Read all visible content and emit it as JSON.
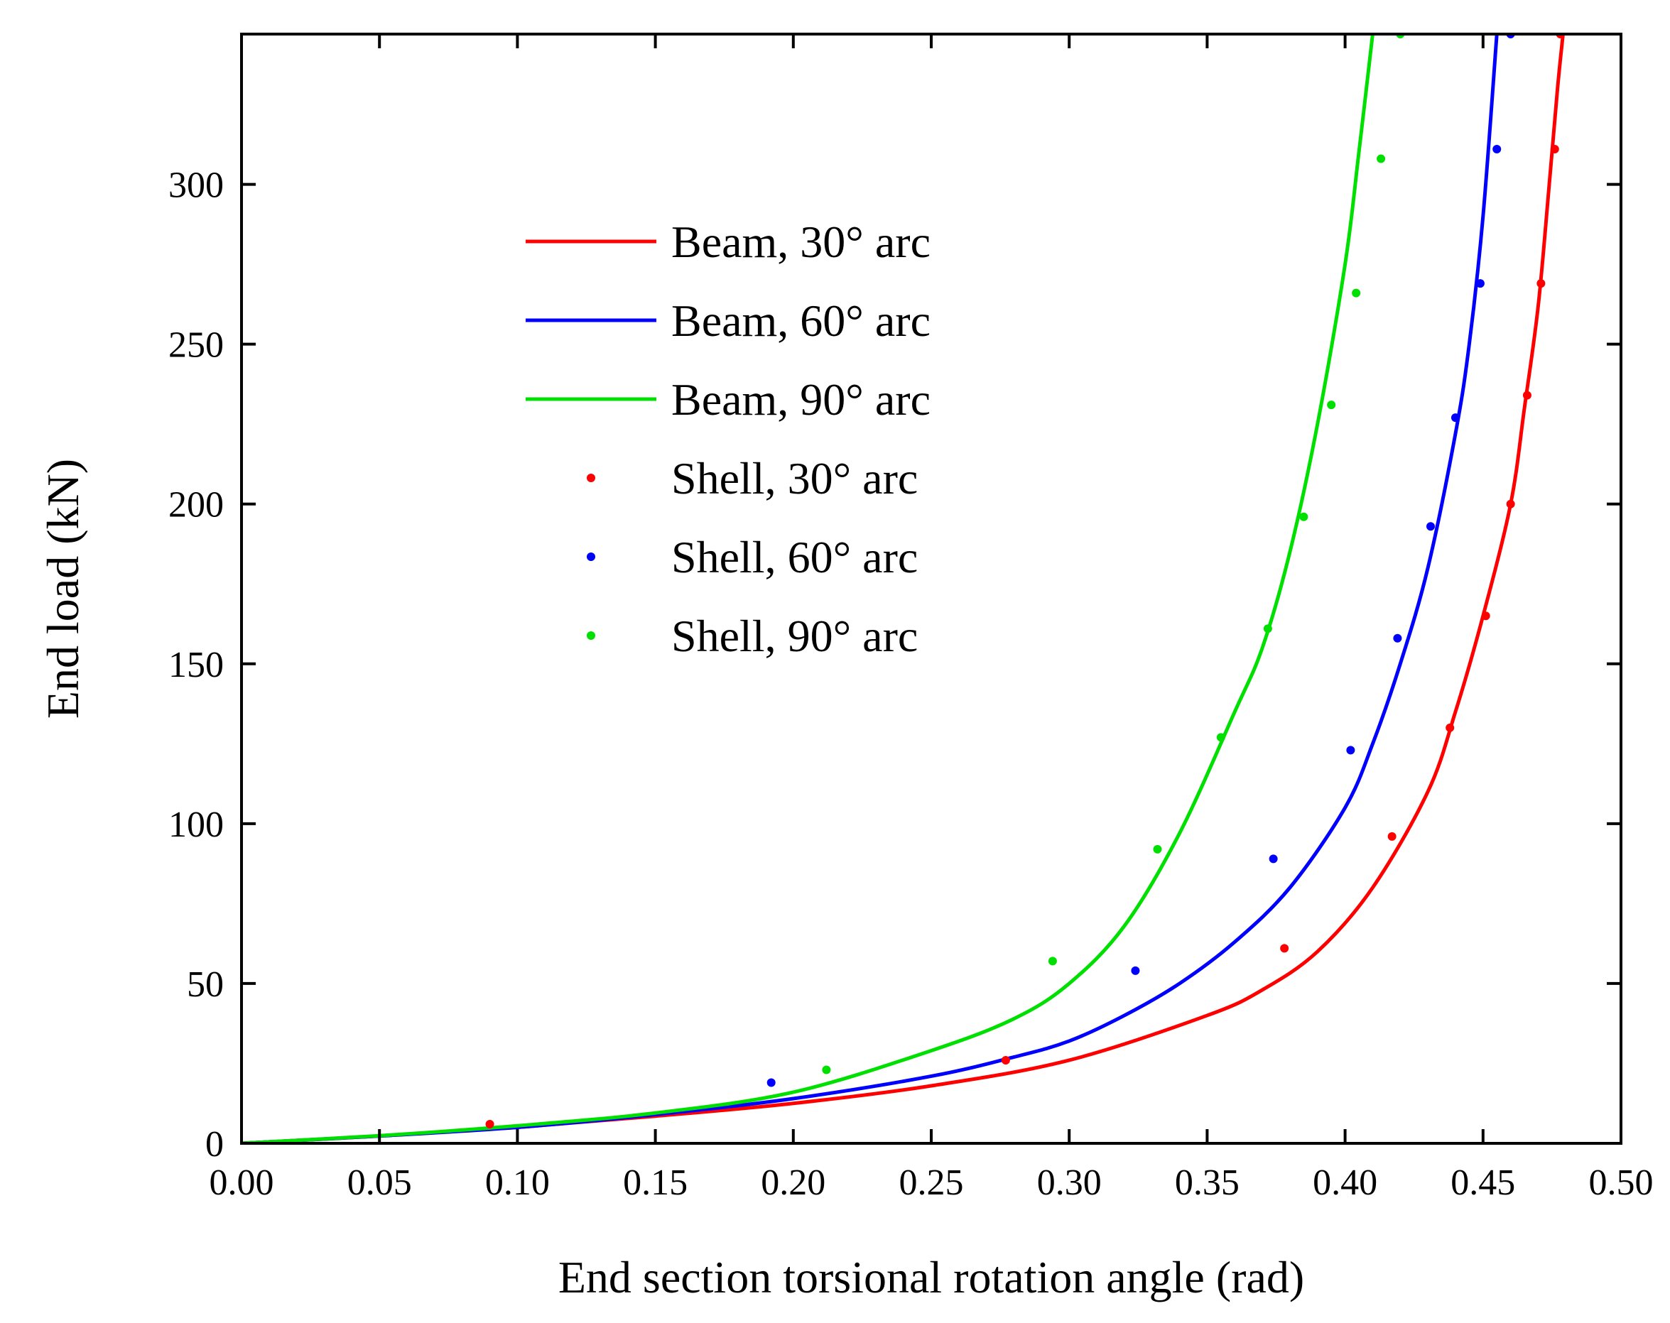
{
  "chart_data": {
    "type": "line",
    "title": "",
    "xlabel": "End section torsional rotation angle (rad)",
    "ylabel": "End load (kN)",
    "xlim": [
      0,
      0.5
    ],
    "ylim": [
      0,
      347
    ],
    "x_ticks": [
      0.0,
      0.05,
      0.1,
      0.15,
      0.2,
      0.25,
      0.3,
      0.35,
      0.4,
      0.45,
      0.5
    ],
    "x_tick_labels": [
      "0.00",
      "0.05",
      "0.10",
      "0.15",
      "0.20",
      "0.25",
      "0.30",
      "0.35",
      "0.40",
      "0.45",
      "0.50"
    ],
    "y_ticks": [
      0,
      50,
      100,
      150,
      200,
      250,
      300
    ],
    "y_tick_labels": [
      "0",
      "50",
      "100",
      "150",
      "200",
      "250",
      "300"
    ],
    "grid": false,
    "legend_position": "upper-left",
    "series": [
      {
        "name": "Beam, 30° arc",
        "kind": "line",
        "color": "#ff0000",
        "x": [
          0.0,
          0.05,
          0.1,
          0.15,
          0.2,
          0.25,
          0.3,
          0.35,
          0.37,
          0.39,
          0.41,
          0.43,
          0.44,
          0.45,
          0.46,
          0.465,
          0.47,
          0.474,
          0.477,
          0.479
        ],
        "y": [
          0,
          2.3,
          5,
          8.5,
          12.5,
          18,
          26,
          40,
          48,
          60,
          80,
          110,
          135,
          165,
          200,
          230,
          262,
          300,
          330,
          347
        ]
      },
      {
        "name": "Beam, 60° arc",
        "kind": "line",
        "color": "#0000ff",
        "x": [
          0.0,
          0.05,
          0.1,
          0.15,
          0.2,
          0.25,
          0.28,
          0.3,
          0.32,
          0.34,
          0.36,
          0.38,
          0.4,
          0.41,
          0.42,
          0.43,
          0.44,
          0.445,
          0.45,
          0.455
        ],
        "y": [
          0,
          2.3,
          5,
          9,
          14,
          21,
          27,
          32,
          40,
          50,
          63,
          80,
          105,
          125,
          150,
          180,
          222,
          250,
          290,
          347
        ]
      },
      {
        "name": "Beam, 90° arc",
        "kind": "line",
        "color": "#00e000",
        "x": [
          0.0,
          0.05,
          0.1,
          0.15,
          0.2,
          0.25,
          0.28,
          0.3,
          0.32,
          0.34,
          0.36,
          0.37,
          0.38,
          0.39,
          0.4,
          0.405,
          0.41
        ],
        "y": [
          0,
          2.4,
          5.5,
          9.5,
          16,
          29,
          39,
          50,
          68,
          97,
          135,
          155,
          185,
          225,
          275,
          310,
          347
        ]
      },
      {
        "name": "Shell,  30° arc",
        "kind": "scatter",
        "color": "#ff0000",
        "x": [
          0.09,
          0.277,
          0.378,
          0.417,
          0.438,
          0.451,
          0.46,
          0.466,
          0.471,
          0.476,
          0.478
        ],
        "y": [
          6,
          26,
          61,
          96,
          130,
          165,
          200,
          234,
          269,
          311,
          347
        ]
      },
      {
        "name": "Shell,  60° arc",
        "kind": "scatter",
        "color": "#0000ff",
        "x": [
          0.192,
          0.324,
          0.374,
          0.402,
          0.419,
          0.431,
          0.44,
          0.449,
          0.455,
          0.46
        ],
        "y": [
          19,
          54,
          89,
          123,
          158,
          193,
          227,
          269,
          311,
          347
        ]
      },
      {
        "name": "Shell,  90° arc",
        "kind": "scatter",
        "color": "#00e000",
        "x": [
          0.212,
          0.294,
          0.332,
          0.355,
          0.372,
          0.385,
          0.395,
          0.404,
          0.413,
          0.42
        ],
        "y": [
          23,
          57,
          92,
          127,
          161,
          196,
          231,
          266,
          308,
          347
        ]
      }
    ]
  }
}
